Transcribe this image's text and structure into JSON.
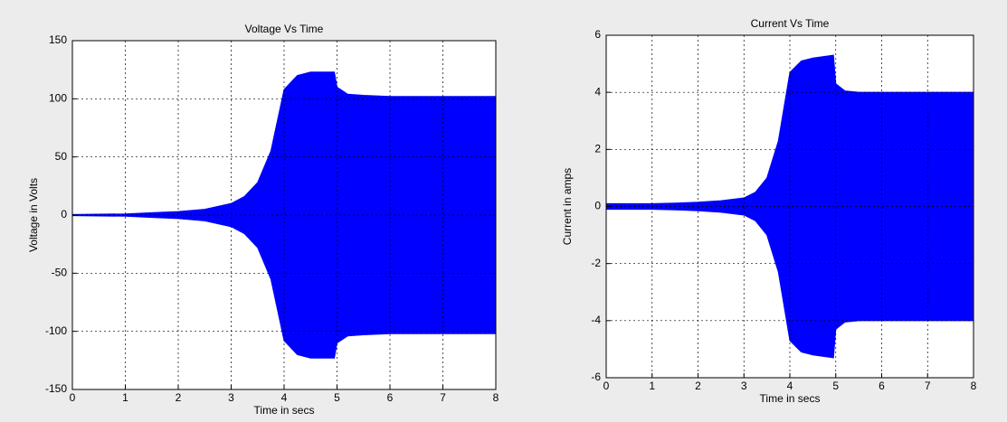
{
  "chart_data": [
    {
      "type": "area",
      "title": "Voltage Vs Time",
      "x_label": "Time in secs",
      "y_label": "Voltage in Volts",
      "x": [
        0,
        0.5,
        1,
        1.5,
        2,
        2.5,
        3,
        3.25,
        3.5,
        3.75,
        4,
        4.25,
        4.5,
        4.95,
        5,
        5.2,
        5.5,
        6,
        7,
        8
      ],
      "series": [
        {
          "color": "#0000ff",
          "values": [
            0.5,
            0.8,
            1,
            2,
            3,
            5,
            10,
            16,
            28,
            55,
            108,
            120,
            123,
            123,
            110,
            104,
            103,
            102,
            102,
            102
          ]
        },
        {
          "color": "#0000ff",
          "values": [
            -0.5,
            -0.8,
            -1,
            -2,
            -3,
            -5,
            -10,
            -16,
            -28,
            -55,
            -108,
            -120,
            -123,
            -123,
            -110,
            -104,
            -103,
            -102,
            -102,
            -102
          ]
        }
      ],
      "xlim": [
        0,
        8
      ],
      "xticks": [
        0,
        1,
        2,
        3,
        4,
        5,
        6,
        7,
        8
      ],
      "ylim": [
        -150,
        150
      ],
      "yticks": [
        -150,
        -100,
        -50,
        0,
        50,
        100,
        150
      ],
      "grid": true
    },
    {
      "type": "area",
      "title": "Current Vs Time",
      "x_label": "Time in secs",
      "y_label": "Current in amps",
      "x": [
        0,
        0.5,
        1,
        1.5,
        2,
        2.5,
        3,
        3.25,
        3.5,
        3.75,
        4,
        4.25,
        4.5,
        4.95,
        5,
        5.2,
        5.5,
        6,
        7,
        8
      ],
      "series": [
        {
          "color": "#0000ff",
          "values": [
            0.1,
            0.1,
            0.1,
            0.12,
            0.15,
            0.2,
            0.3,
            0.5,
            1,
            2.3,
            4.7,
            5.1,
            5.2,
            5.3,
            4.3,
            4.05,
            4,
            4,
            4,
            4
          ]
        },
        {
          "color": "#0000ff",
          "values": [
            -0.1,
            -0.1,
            -0.1,
            -0.12,
            -0.15,
            -0.2,
            -0.3,
            -0.5,
            -1,
            -2.3,
            -4.7,
            -5.1,
            -5.2,
            -5.3,
            -4.3,
            -4.05,
            -4,
            -4,
            -4,
            -4
          ]
        }
      ],
      "xlim": [
        0,
        8
      ],
      "xticks": [
        0,
        1,
        2,
        3,
        4,
        5,
        6,
        7,
        8
      ],
      "ylim": [
        -6,
        6
      ],
      "yticks": [
        -6,
        -4,
        -2,
        0,
        2,
        4,
        6
      ],
      "grid": true
    }
  ]
}
